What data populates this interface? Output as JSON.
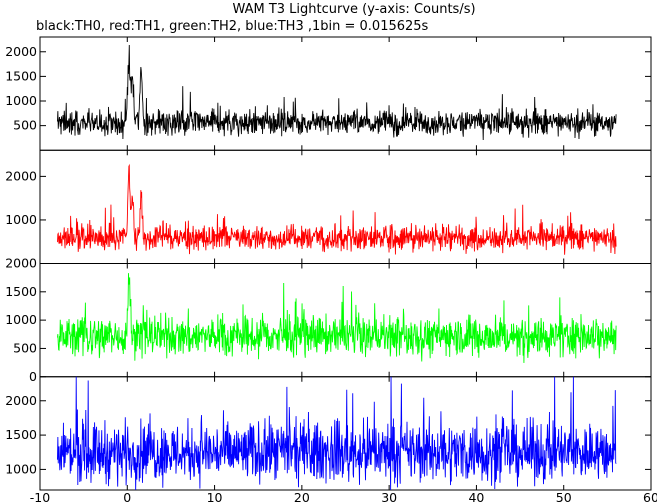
{
  "chart_data": {
    "type": "line",
    "title": "WAM T3 Lightcurve (y-axis: Counts/s)",
    "subtitle": "black:TH0, red:TH1, green:TH2, blue:TH3 ,1bin = 0.015625s",
    "xlabel": "",
    "x_range": [
      -10,
      60
    ],
    "x_ticks": [
      -10,
      0,
      10,
      20,
      30,
      40,
      50,
      60
    ],
    "data_x_range": [
      -8,
      56
    ],
    "bin_seconds": 0.015625,
    "grid": false,
    "panels": [
      {
        "name": "TH0",
        "color": "#000000",
        "ylim": [
          0,
          2300
        ],
        "y_ticks": [
          500,
          1000,
          1500,
          2000
        ],
        "mean": 560,
        "noise": 160,
        "peaks": [
          {
            "x": 0.2,
            "value": 2250
          },
          {
            "x": 0.6,
            "value": 1650
          },
          {
            "x": 1.6,
            "value": 1800
          }
        ]
      },
      {
        "name": "TH1",
        "color": "#ff0000",
        "ylim": [
          0,
          2600
        ],
        "y_ticks": [
          1000,
          2000
        ],
        "mean": 590,
        "noise": 180,
        "peaks": [
          {
            "x": 0.2,
            "value": 2400
          },
          {
            "x": 0.6,
            "value": 1700
          },
          {
            "x": 1.6,
            "value": 1600
          }
        ]
      },
      {
        "name": "TH2",
        "color": "#00ff00",
        "ylim": [
          0,
          2000
        ],
        "y_ticks": [
          0,
          500,
          1000,
          1500,
          2000
        ],
        "mean": 720,
        "noise": 220,
        "peaks": [
          {
            "x": 0.2,
            "value": 1950
          }
        ]
      },
      {
        "name": "TH3",
        "color": "#0000ff",
        "ylim": [
          700,
          2350
        ],
        "y_ticks": [
          1000,
          1500,
          2000
        ],
        "mean": 1250,
        "noise": 270,
        "peaks": []
      }
    ]
  }
}
